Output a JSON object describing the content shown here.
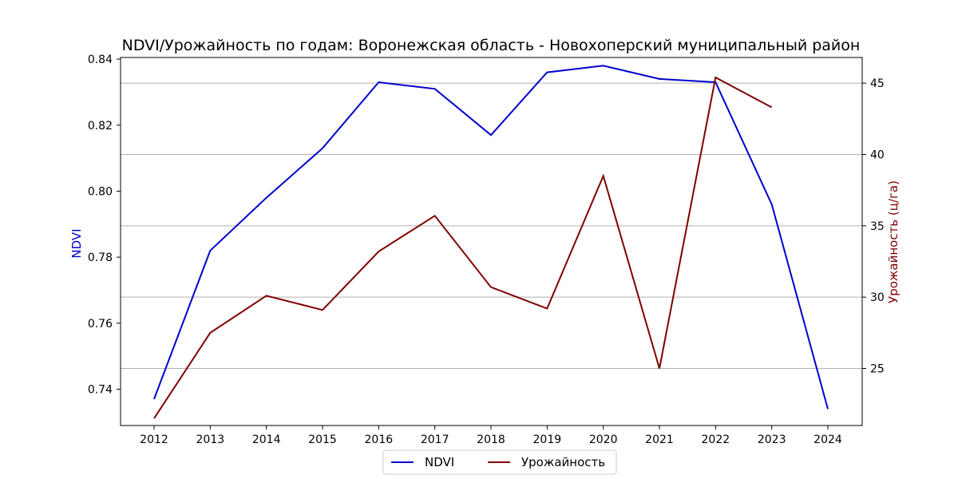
{
  "chart_data": {
    "type": "line",
    "title": "NDVI/Урожайность по годам: Воронежская область - Новохоперский муниципальный район",
    "ylabel_left": "NDVI",
    "ylabel_right": "Урожайность (ц/га)",
    "x": [
      2012,
      2013,
      2014,
      2015,
      2016,
      2017,
      2018,
      2019,
      2020,
      2021,
      2022,
      2023,
      2024
    ],
    "x_ticks": [
      "2012",
      "2013",
      "2014",
      "2015",
      "2016",
      "2017",
      "2018",
      "2019",
      "2020",
      "2021",
      "2022",
      "2023",
      "2024"
    ],
    "y_left_ticks": [
      "0.74",
      "0.76",
      "0.78",
      "0.80",
      "0.82",
      "0.84"
    ],
    "y_right_ticks": [
      "25",
      "30",
      "35",
      "40",
      "45"
    ],
    "y_left_range": [
      0.729,
      0.8405
    ],
    "y_right_range": [
      21.0,
      46.8
    ],
    "grid": "horizontal on right axis",
    "legend_position": "bottom-center",
    "series": [
      {
        "name": "NDVI",
        "axis": "left",
        "color": "#0000cd",
        "values": [
          0.737,
          0.782,
          0.798,
          0.813,
          0.833,
          0.831,
          0.817,
          0.836,
          0.838,
          0.834,
          0.833,
          0.796,
          0.734
        ]
      },
      {
        "name": "Урожайность",
        "axis": "right",
        "color": "#800000",
        "values": [
          21.5,
          27.5,
          30.1,
          29.1,
          33.2,
          35.7,
          30.7,
          29.2,
          38.5,
          25.0,
          45.4,
          43.3,
          null
        ]
      }
    ]
  }
}
